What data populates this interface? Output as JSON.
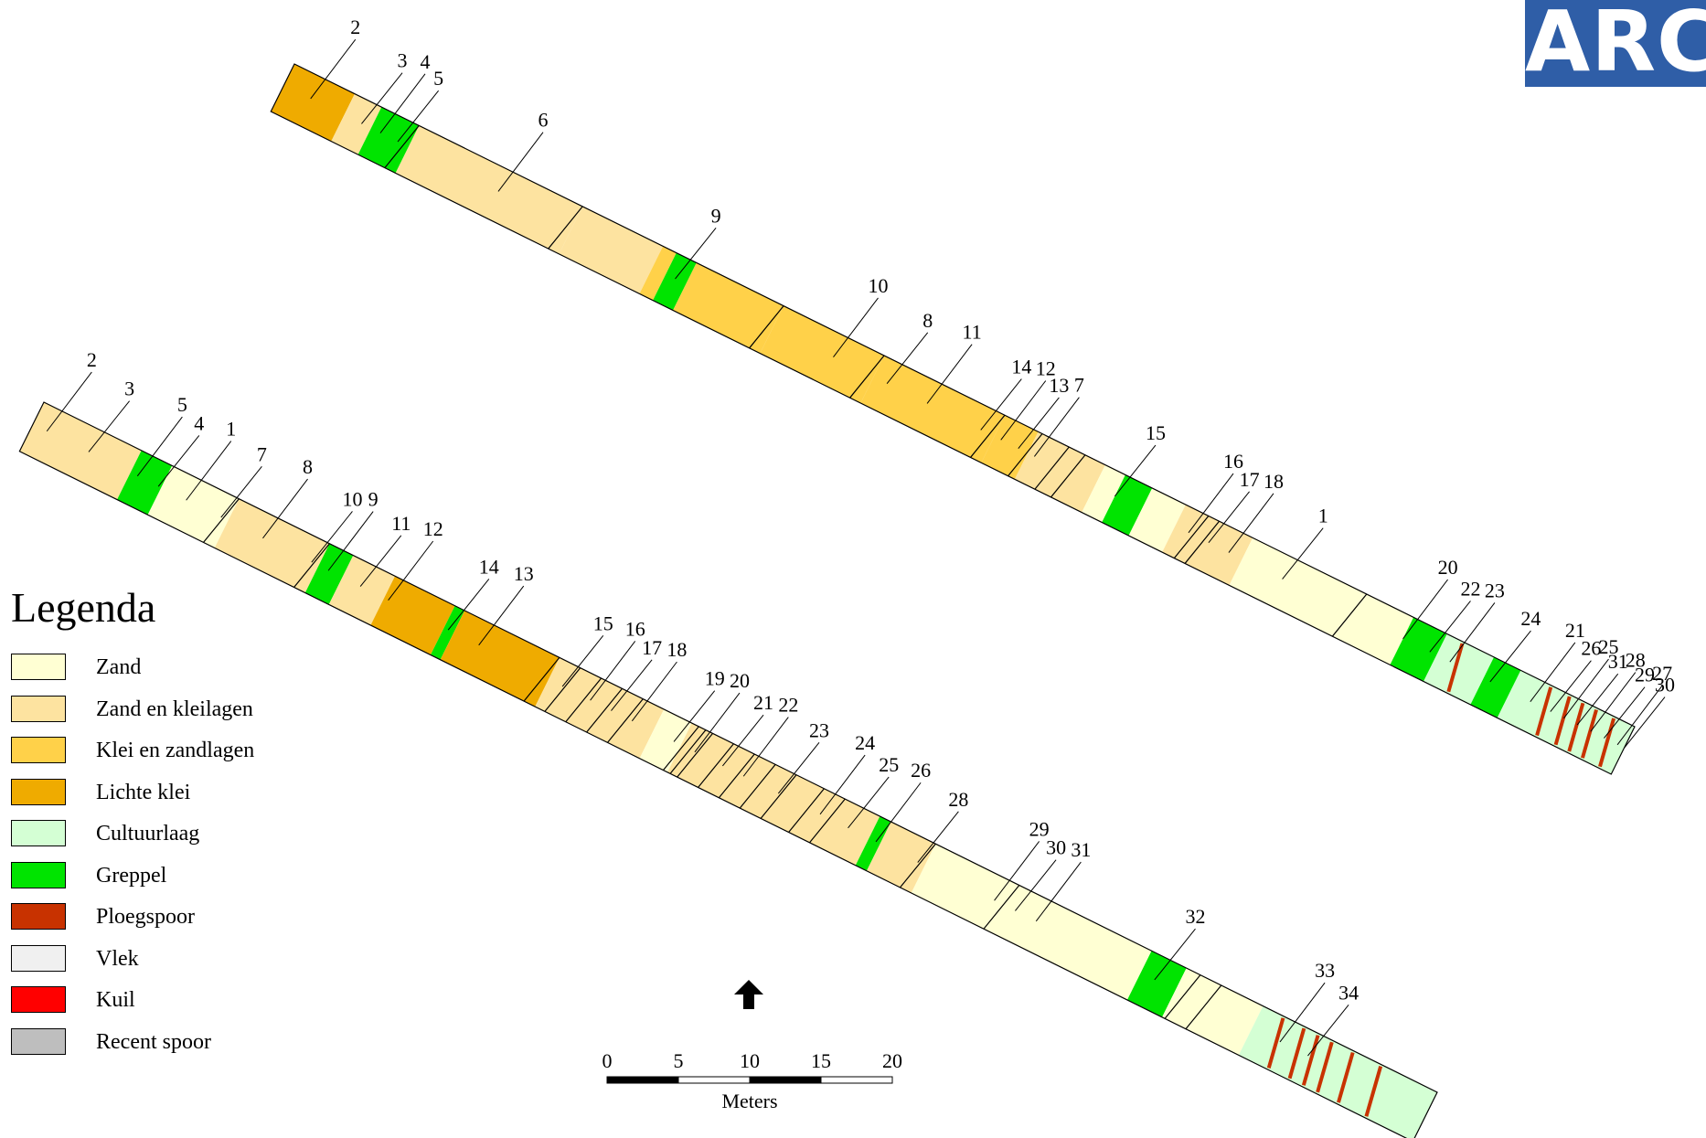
{
  "logo": {
    "text": "ARC",
    "color": "#2f5ea7"
  },
  "colors": {
    "zand": "#ffffd3",
    "zand_en_kleilagen": "#fde3a0",
    "klei_en_zandlagen": "#ffd149",
    "lichte_klei": "#efab00",
    "cultuurlaag": "#d4ffd4",
    "greppel": "#00e400",
    "ploegspoor": "#c83200",
    "vlek": "#f0f0f0",
    "kuil": "#ff0000",
    "recent_spoor": "#bebebe"
  },
  "legend": {
    "title": "Legenda",
    "items": [
      {
        "label": "Zand",
        "color": "#ffffd3"
      },
      {
        "label": "Zand en kleilagen",
        "color": "#fde3a0"
      },
      {
        "label": "Klei en zandlagen",
        "color": "#ffd149"
      },
      {
        "label": "Lichte klei",
        "color": "#efab00"
      },
      {
        "label": "Cultuurlaag",
        "color": "#d4ffd4"
      },
      {
        "label": "Greppel",
        "color": "#00e400"
      },
      {
        "label": "Ploegspoor",
        "color": "#c83200"
      },
      {
        "label": "Vlek",
        "color": "#f0f0f0"
      },
      {
        "label": "Kuil",
        "color": "#ff0000"
      },
      {
        "label": "Recent spoor",
        "color": "#bebebe"
      }
    ]
  },
  "scale_bar": {
    "ticks": [
      "0",
      "5",
      "10",
      "15",
      "20"
    ],
    "unit_label": "Meters"
  },
  "north_arrow": {
    "icon": "north-arrow-icon"
  },
  "trench_top": {
    "segments": [
      {
        "t": 0.0,
        "c": "lichte_klei"
      },
      {
        "t": 0.045,
        "c": "zand_en_kleilagen"
      },
      {
        "t": 0.065,
        "c": "greppel"
      },
      {
        "t": 0.093,
        "c": "zand_en_kleilagen"
      },
      {
        "t": 0.215,
        "c": "zand_en_kleilagen"
      },
      {
        "t": 0.275,
        "c": "klei_en_zandlagen"
      },
      {
        "t": 0.285,
        "c": "greppel"
      },
      {
        "t": 0.3,
        "c": "klei_en_zandlagen"
      },
      {
        "t": 0.365,
        "c": "klei_en_zandlagen"
      },
      {
        "t": 0.44,
        "c": "klei_en_zandlagen"
      },
      {
        "t": 0.53,
        "c": "klei_en_zandlagen"
      },
      {
        "t": 0.555,
        "c": "zand_en_kleilagen"
      },
      {
        "t": 0.605,
        "c": "zand"
      },
      {
        "t": 0.62,
        "c": "greppel"
      },
      {
        "t": 0.64,
        "c": "zand"
      },
      {
        "t": 0.665,
        "c": "zand_en_kleilagen"
      },
      {
        "t": 0.715,
        "c": "zand"
      },
      {
        "t": 0.835,
        "c": "greppel"
      },
      {
        "t": 0.86,
        "c": "cultuurlaag"
      },
      {
        "t": 0.895,
        "c": "greppel"
      },
      {
        "t": 0.915,
        "c": "cultuurlaag"
      },
      {
        "t": 1.0,
        "c": "cultuurlaag"
      }
    ],
    "separators": [
      0.093,
      0.215,
      0.365,
      0.44,
      0.53,
      0.558,
      0.578,
      0.59,
      0.682,
      0.69,
      0.8
    ],
    "plough_marks": [
      0.872,
      0.938,
      0.952,
      0.962,
      0.972,
      0.985
    ],
    "labels": [
      {
        "text": "2",
        "t": 0.02,
        "side": "top"
      },
      {
        "text": "3",
        "t": 0.058,
        "side": "top"
      },
      {
        "text": "4",
        "t": 0.072,
        "side": "top"
      },
      {
        "text": "5",
        "t": 0.085,
        "side": "top"
      },
      {
        "text": "6",
        "t": 0.16,
        "side": "top"
      },
      {
        "text": "9",
        "t": 0.292,
        "side": "top"
      },
      {
        "text": "10",
        "t": 0.41,
        "side": "top"
      },
      {
        "text": "8",
        "t": 0.45,
        "side": "top"
      },
      {
        "text": "11",
        "t": 0.48,
        "side": "top"
      },
      {
        "text": "14",
        "t": 0.52,
        "side": "top"
      },
      {
        "text": "12",
        "t": 0.535,
        "side": "top"
      },
      {
        "text": "13",
        "t": 0.548,
        "side": "top"
      },
      {
        "text": "7",
        "t": 0.56,
        "side": "top"
      },
      {
        "text": "15",
        "t": 0.62,
        "side": "top"
      },
      {
        "text": "16",
        "t": 0.675,
        "side": "top"
      },
      {
        "text": "17",
        "t": 0.69,
        "side": "top"
      },
      {
        "text": "18",
        "t": 0.705,
        "side": "top"
      },
      {
        "text": "1",
        "t": 0.745,
        "side": "top"
      },
      {
        "text": "20",
        "t": 0.835,
        "side": "top"
      },
      {
        "text": "22",
        "t": 0.855,
        "side": "top"
      },
      {
        "text": "23",
        "t": 0.87,
        "side": "top"
      },
      {
        "text": "24",
        "t": 0.9,
        "side": "top"
      },
      {
        "text": "21",
        "t": 0.93,
        "side": "top"
      },
      {
        "text": "26",
        "t": 0.945,
        "side": "top"
      },
      {
        "text": "25",
        "t": 0.955,
        "side": "top"
      },
      {
        "text": "31",
        "t": 0.965,
        "side": "top"
      },
      {
        "text": "28",
        "t": 0.975,
        "side": "top"
      },
      {
        "text": "29",
        "t": 0.985,
        "side": "top"
      },
      {
        "text": "27",
        "t": 0.995,
        "side": "top"
      },
      {
        "text": "30",
        "t": 1.0,
        "side": "top"
      }
    ]
  },
  "trench_bottom": {
    "segments": [
      {
        "t": 0.0,
        "c": "zand_en_kleilagen"
      },
      {
        "t": 0.07,
        "c": "greppel"
      },
      {
        "t": 0.092,
        "c": "zand"
      },
      {
        "t": 0.14,
        "c": "zand_en_kleilagen"
      },
      {
        "t": 0.205,
        "c": "greppel"
      },
      {
        "t": 0.222,
        "c": "zand_en_kleilagen"
      },
      {
        "t": 0.252,
        "c": "lichte_klei"
      },
      {
        "t": 0.295,
        "c": "greppel"
      },
      {
        "t": 0.302,
        "c": "lichte_klei"
      },
      {
        "t": 0.37,
        "c": "zand_en_kleilagen"
      },
      {
        "t": 0.445,
        "c": "zand"
      },
      {
        "t": 0.465,
        "c": "zand_en_kleilagen"
      },
      {
        "t": 0.6,
        "c": "greppel"
      },
      {
        "t": 0.608,
        "c": "zand_en_kleilagen"
      },
      {
        "t": 0.64,
        "c": "zand"
      },
      {
        "t": 0.795,
        "c": "greppel"
      },
      {
        "t": 0.82,
        "c": "zand"
      },
      {
        "t": 0.875,
        "c": "cultuurlaag"
      },
      {
        "t": 1.0,
        "c": "cultuurlaag"
      }
    ],
    "separators": [
      0.14,
      0.205,
      0.37,
      0.385,
      0.4,
      0.415,
      0.43,
      0.47,
      0.475,
      0.48,
      0.495,
      0.51,
      0.525,
      0.54,
      0.56,
      0.575,
      0.64,
      0.7,
      0.83,
      0.845
    ],
    "plough_marks": [
      0.89,
      0.905,
      0.915,
      0.925,
      0.94,
      0.96
    ],
    "labels": [
      {
        "text": "2",
        "t": 0.01,
        "side": "top"
      },
      {
        "text": "3",
        "t": 0.04,
        "side": "top"
      },
      {
        "text": "5",
        "t": 0.075,
        "side": "top"
      },
      {
        "text": "4",
        "t": 0.09,
        "side": "top"
      },
      {
        "text": "1",
        "t": 0.11,
        "side": "top"
      },
      {
        "text": "7",
        "t": 0.135,
        "side": "top"
      },
      {
        "text": "8",
        "t": 0.165,
        "side": "top"
      },
      {
        "text": "10",
        "t": 0.2,
        "side": "top"
      },
      {
        "text": "9",
        "t": 0.212,
        "side": "top"
      },
      {
        "text": "11",
        "t": 0.235,
        "side": "top"
      },
      {
        "text": "12",
        "t": 0.255,
        "side": "top"
      },
      {
        "text": "14",
        "t": 0.298,
        "side": "top"
      },
      {
        "text": "13",
        "t": 0.32,
        "side": "top"
      },
      {
        "text": "15",
        "t": 0.38,
        "side": "top"
      },
      {
        "text": "16",
        "t": 0.4,
        "side": "top"
      },
      {
        "text": "17",
        "t": 0.415,
        "side": "top"
      },
      {
        "text": "18",
        "t": 0.43,
        "side": "top"
      },
      {
        "text": "19",
        "t": 0.46,
        "side": "top"
      },
      {
        "text": "20",
        "t": 0.475,
        "side": "top"
      },
      {
        "text": "21",
        "t": 0.495,
        "side": "top"
      },
      {
        "text": "22",
        "t": 0.51,
        "side": "top"
      },
      {
        "text": "23",
        "t": 0.535,
        "side": "top"
      },
      {
        "text": "24",
        "t": 0.565,
        "side": "top"
      },
      {
        "text": "25",
        "t": 0.585,
        "side": "top"
      },
      {
        "text": "26",
        "t": 0.605,
        "side": "top"
      },
      {
        "text": "28",
        "t": 0.635,
        "side": "top"
      },
      {
        "text": "29",
        "t": 0.69,
        "side": "top"
      },
      {
        "text": "30",
        "t": 0.705,
        "side": "top"
      },
      {
        "text": "31",
        "t": 0.72,
        "side": "top"
      },
      {
        "text": "32",
        "t": 0.805,
        "side": "top"
      },
      {
        "text": "33",
        "t": 0.895,
        "side": "top"
      },
      {
        "text": "34",
        "t": 0.915,
        "side": "top"
      }
    ]
  }
}
